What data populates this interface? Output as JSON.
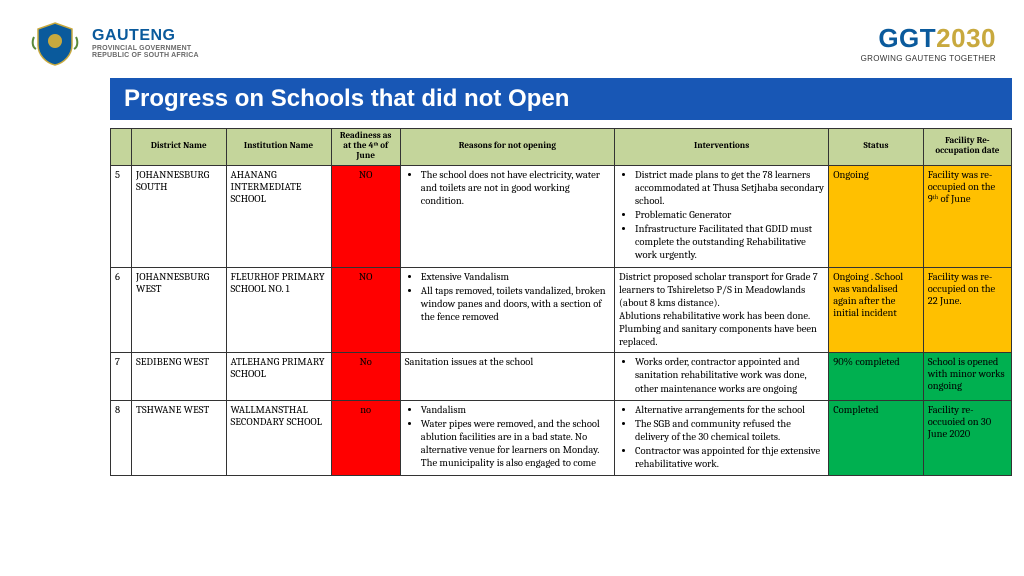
{
  "header": {
    "brand_line1": "GAUTENG",
    "brand_line2": "PROVINCIAL GOVERNMENT",
    "brand_line3": "REPUBLIC OF SOUTH AFRICA",
    "ggt_blue": "GGT",
    "ggt_gold": "2030",
    "tagline": "GROWING GAUTENG TOGETHER"
  },
  "title": "Progress on Schools that did not Open",
  "columns": {
    "c0": "",
    "c1": "District Name",
    "c2": "Institution Name",
    "c3": "Readiness as at the 4ᵗʰ of June",
    "c4": "Reasons for not opening",
    "c5": "Interventions",
    "c6": "Status",
    "c7": "Facility Re-occupation date"
  },
  "rows": [
    {
      "num": "5",
      "district": "JOHANNESBURG SOUTH",
      "institution": "AHANANG INTERMEDIATE SCHOOL",
      "readiness": "NO",
      "readiness_color": "red",
      "reasons_bullets": [
        "The school does not have electricity, water and toilets are not in good working condition."
      ],
      "interventions_bullets": [
        "District made plans to get the 78 learners accommodated at Thusa Setjhaba secondary school.",
        "Problematic Generator",
        "Infrastructure Facilitated that GDID must complete the outstanding Rehabilitative work urgently."
      ],
      "status": "Ongoing",
      "status_color": "orange",
      "facility": "Facility was re-occupied on the 9ᵗʰ of June",
      "facility_color": "orange"
    },
    {
      "num": "6",
      "district": "JOHANNESBURG WEST",
      "institution": "FLEURHOF PRIMARY SCHOOL NO. 1",
      "readiness": "NO",
      "readiness_color": "red",
      "reasons_bullets": [
        "Extensive Vandalism",
        "All taps removed, toilets vandalized, broken window panes and doors, with a section of the fence removed"
      ],
      "interventions_plain": "District proposed scholar transport for Grade 7 learners to Tshireletso P/S in Meadowlands (about 8 kms distance).\nAblutions rehabilitative work has been done.  Plumbing and sanitary components have been replaced.",
      "status": "Ongoing . School was vandalised again after the initial incident",
      "status_color": "orange",
      "facility": "Facility was re-occupied on the 22 June.",
      "facility_color": "orange"
    },
    {
      "num": "7",
      "district": "SEDIBENG WEST",
      "institution": "ATLEHANG PRIMARY SCHOOL",
      "readiness": "No",
      "readiness_color": "red",
      "reasons_plain": "Sanitation issues at the school",
      "interventions_bullets": [
        "Works order, contractor appointed and sanitation rehabilitative work was done, other maintenance works are ongoing"
      ],
      "status": "90% completed",
      "status_color": "green",
      "facility": "School is opened with minor works ongoing",
      "facility_color": "green"
    },
    {
      "num": "8",
      "district": "TSHWANE WEST",
      "institution": "WALLMANSTHAL SECONDARY SCHOOL",
      "readiness": "no",
      "readiness_color": "red",
      "reasons_bullets": [
        "Vandalism",
        "Water pipes were removed, and the school ablution facilities are in a bad state. No alternative venue for learners on Monday. The municipality is also engaged to come"
      ],
      "interventions_bullets": [
        "Alternative arrangements for the school",
        "The SGB and community refused the delivery of the 30 chemical toilets.",
        "Contractor was appointed for thje extensive rehabilitative work."
      ],
      "status": "Completed",
      "status_color": "green",
      "facility": "Facility re-occuoied on 30 June 2020",
      "facility_color": "green"
    }
  ],
  "colors": {
    "red": "#ff0000",
    "orange": "#ffc000",
    "green": "#00b050",
    "header_green": "#c4d59b",
    "title_blue": "#1857b5"
  }
}
